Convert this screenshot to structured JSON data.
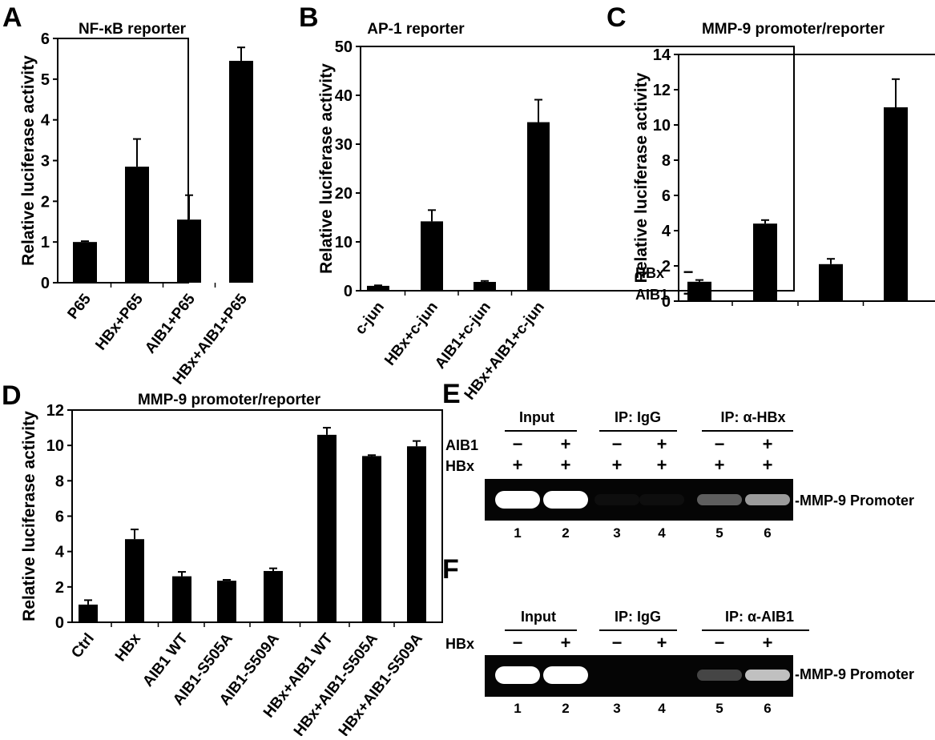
{
  "chart_data": [
    {
      "id": "A",
      "type": "bar",
      "panel_label": "A",
      "title": "NF-κB reporter",
      "ylabel": "Relative luciferase activity",
      "ylim": [
        0,
        6
      ],
      "yticks": [
        0,
        1,
        2,
        3,
        4,
        5,
        6
      ],
      "categories": [
        "P65",
        "HBx+P65",
        "AIB1+P65",
        "HBx+AIB1+P65"
      ],
      "values": [
        1.0,
        2.85,
        1.55,
        5.45
      ],
      "errors": [
        0.02,
        0.68,
        0.6,
        0.33
      ]
    },
    {
      "id": "B",
      "type": "bar",
      "panel_label": "B",
      "title": "AP-1 reporter",
      "ylabel": "Relative luciferase activity",
      "ylim": [
        0,
        50
      ],
      "yticks": [
        0,
        10,
        20,
        30,
        40,
        50
      ],
      "categories": [
        "c-jun",
        "HBx+c-jun",
        "AIB1+c-jun",
        "HBx+AIB1+c-jun"
      ],
      "values": [
        1.0,
        14.2,
        1.8,
        34.5
      ],
      "errors": [
        0.1,
        2.3,
        0.2,
        4.6
      ]
    },
    {
      "id": "C",
      "type": "bar",
      "panel_label": "C",
      "title": "MMP-9 promoter/reporter",
      "ylabel": "Relative luciferase activity",
      "ylim": [
        0,
        14
      ],
      "yticks": [
        0,
        2,
        4,
        6,
        8,
        10,
        12,
        14
      ],
      "categories": [
        "",
        "",
        "",
        ""
      ],
      "values": [
        1.1,
        4.4,
        2.1,
        11.0
      ],
      "errors": [
        0.1,
        0.2,
        0.3,
        1.6
      ],
      "conditions": [
        {
          "label": "HBx",
          "signs": [
            "−",
            "+",
            "−",
            "+"
          ]
        },
        {
          "label": "AIB1",
          "signs": [
            "−",
            "−",
            "+",
            "+"
          ]
        }
      ]
    },
    {
      "id": "D",
      "type": "bar",
      "panel_label": "D",
      "title": "MMP-9 promoter/reporter",
      "ylabel": "Relative luciferase activity",
      "ylim": [
        0,
        12
      ],
      "yticks": [
        0,
        2,
        4,
        6,
        8,
        10,
        12
      ],
      "categories": [
        "Ctrl",
        "HBx",
        "AIB1 WT",
        "AIB1-S505A",
        "AIB1-S509A",
        "HBx+AIB1 WT",
        "HBx+AIB1-S505A",
        "HBx+AIB1-S509A"
      ],
      "values": [
        1.0,
        4.7,
        2.6,
        2.35,
        2.9,
        10.6,
        9.4,
        9.95
      ],
      "errors": [
        0.25,
        0.55,
        0.25,
        0.05,
        0.15,
        0.4,
        0.05,
        0.3
      ]
    }
  ],
  "gels": [
    {
      "id": "E",
      "panel_label": "E",
      "groups": [
        "Input",
        "IP: IgG",
        "IP: α-HBx"
      ],
      "rows": [
        {
          "label": "AIB1",
          "signs": [
            "−",
            "+",
            "−",
            "+",
            "−",
            "+"
          ]
        },
        {
          "label": "HBx",
          "signs": [
            "+",
            "+",
            "+",
            "+",
            "+",
            "+"
          ]
        }
      ],
      "band_label": "-MMP-9 Promoter",
      "lanes": [
        "1",
        "2",
        "3",
        "4",
        "5",
        "6"
      ],
      "band_intensity": [
        1.0,
        1.0,
        0.05,
        0.05,
        0.55,
        0.75
      ]
    },
    {
      "id": "F",
      "panel_label": "F",
      "groups": [
        "Input",
        "IP: IgG",
        "IP: α-AIB1"
      ],
      "rows": [
        {
          "label": "HBx",
          "signs": [
            "−",
            "+",
            "−",
            "+",
            "−",
            "+"
          ]
        }
      ],
      "band_label": "-MMP-9 Promoter",
      "lanes": [
        "1",
        "2",
        "3",
        "4",
        "5",
        "6"
      ],
      "band_intensity": [
        1.0,
        1.0,
        0.0,
        0.0,
        0.45,
        0.85
      ]
    }
  ]
}
